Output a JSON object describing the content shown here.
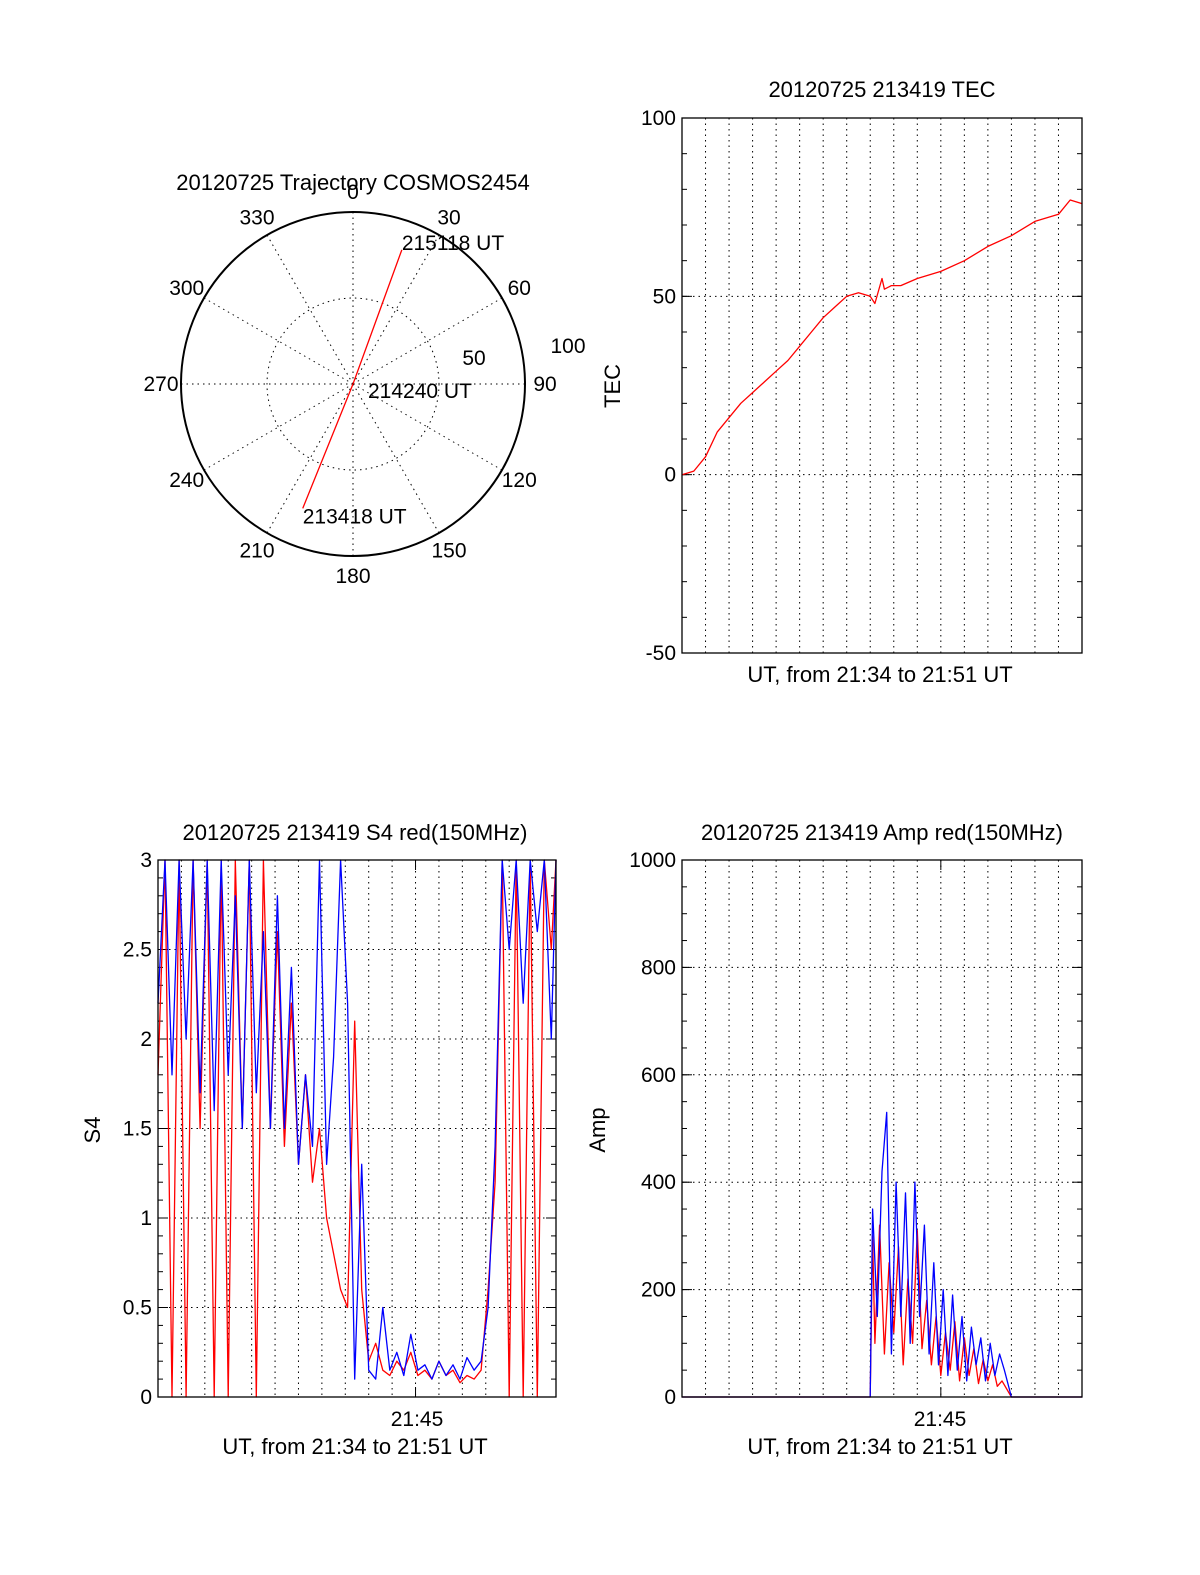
{
  "colors": {
    "red_series": "#ff0000",
    "blue_series": "#0000ff",
    "axes": "#000000",
    "background": "#ffffff"
  },
  "chart_data": [
    {
      "type": "polar",
      "title": "20120725 Trajectory COSMOS2454",
      "azimuth_ticks": [
        "0",
        "30",
        "60",
        "90",
        "120",
        "150",
        "180",
        "210",
        "240",
        "270",
        "300",
        "330"
      ],
      "radial_ticks": [
        "50",
        "100"
      ],
      "rlim": [
        0,
        100
      ],
      "trajectory": [
        {
          "azimuth": 202,
          "zenith_angle": 78,
          "label": "213418 UT"
        },
        {
          "azimuth": 20,
          "zenith_angle": 0,
          "label": "214240 UT"
        },
        {
          "azimuth": 20,
          "zenith_angle": 83,
          "label": "215118 UT"
        }
      ],
      "grid": true
    },
    {
      "type": "line",
      "title": "20120725 213419 TEC",
      "xlabel": "UT, from 21:34 to 21:51 UT",
      "ylabel": "TEC",
      "xlim": [
        "21:34",
        "21:51"
      ],
      "ylim": [
        -50,
        100
      ],
      "y_ticks": [
        "-50",
        "0",
        "50",
        "100"
      ],
      "grid": true,
      "series": [
        {
          "color": "red",
          "x": [
            0,
            0.5,
            1,
            1.5,
            2,
            2.5,
            3,
            3.5,
            4,
            4.5,
            5,
            5.5,
            6,
            6.5,
            7,
            7.5,
            8,
            8.2,
            8.5,
            8.6,
            8.9,
            9.3,
            10,
            11,
            12,
            13,
            14,
            15,
            16,
            16.5,
            17
          ],
          "y": [
            0,
            1,
            5,
            12,
            16,
            20,
            23,
            26,
            29,
            32,
            36,
            40,
            44,
            47,
            50,
            51,
            50,
            48,
            55,
            52,
            53,
            53,
            55,
            57,
            60,
            64,
            67,
            71,
            73,
            77,
            76
          ]
        }
      ]
    },
    {
      "type": "line",
      "title": "20120725 213419 S4 red(150MHz)",
      "xlabel": "UT, from 21:34 to 21:51 UT",
      "ylabel": "S4",
      "xlim": [
        "21:34",
        "21:51"
      ],
      "ylim": [
        0,
        3
      ],
      "y_ticks": [
        "0",
        "0.5",
        "1",
        "1.5",
        "2",
        "2.5",
        "3"
      ],
      "x_ticks": [
        "21:45"
      ],
      "grid": true,
      "series": [
        {
          "color": "red",
          "x": [
            0,
            0.3,
            0.6,
            0.9,
            1.2,
            1.5,
            1.8,
            2.1,
            2.4,
            2.7,
            3.0,
            3.3,
            3.6,
            3.9,
            4.2,
            4.5,
            4.8,
            5.1,
            5.4,
            5.7,
            6.0,
            6.3,
            6.6,
            6.9,
            7.2,
            7.5,
            7.8,
            8.1,
            8.4,
            8.7,
            9.0,
            9.3,
            9.6,
            9.9,
            10.2,
            10.5,
            10.8,
            11.1,
            11.4,
            11.7,
            12.0,
            12.3,
            12.6,
            12.9,
            13.2,
            13.5,
            13.8,
            14.1,
            14.4,
            14.7,
            15.0,
            15.3,
            15.6,
            15.9,
            16.2,
            16.5,
            16.8,
            17.0
          ],
          "y": [
            1.8,
            3.0,
            0.0,
            3.0,
            0.0,
            3.0,
            1.5,
            3.0,
            0.0,
            3.0,
            0.0,
            3.0,
            1.5,
            3.0,
            0.0,
            3.0,
            1.5,
            2.6,
            1.4,
            2.2,
            1.3,
            1.8,
            1.2,
            1.5,
            1.0,
            0.8,
            0.6,
            0.5,
            2.1,
            0.6,
            0.2,
            0.3,
            0.15,
            0.12,
            0.2,
            0.15,
            0.25,
            0.12,
            0.15,
            0.1,
            0.2,
            0.12,
            0.15,
            0.08,
            0.12,
            0.1,
            0.15,
            0.6,
            1.2,
            3.0,
            0.0,
            3.0,
            0.0,
            3.0,
            0.0,
            3.0,
            2.5,
            3.0
          ]
        },
        {
          "color": "blue",
          "x": [
            0,
            0.3,
            0.6,
            0.9,
            1.2,
            1.5,
            1.8,
            2.1,
            2.4,
            2.7,
            3.0,
            3.3,
            3.6,
            3.9,
            4.2,
            4.5,
            4.8,
            5.1,
            5.4,
            5.7,
            6.0,
            6.3,
            6.6,
            6.9,
            7.2,
            7.5,
            7.8,
            8.1,
            8.4,
            8.7,
            9.0,
            9.3,
            9.6,
            9.9,
            10.2,
            10.5,
            10.8,
            11.1,
            11.4,
            11.7,
            12.0,
            12.3,
            12.6,
            12.9,
            13.2,
            13.5,
            13.8,
            14.1,
            14.4,
            14.7,
            15.0,
            15.3,
            15.6,
            15.9,
            16.2,
            16.5,
            16.8,
            17.0
          ],
          "y": [
            2.2,
            3.0,
            1.8,
            3.0,
            2.0,
            3.0,
            1.7,
            3.0,
            1.6,
            3.0,
            1.8,
            2.8,
            1.5,
            3.0,
            1.7,
            2.6,
            1.5,
            2.8,
            1.5,
            2.4,
            1.3,
            1.8,
            1.4,
            3.0,
            1.3,
            1.9,
            3.0,
            2.2,
            0.1,
            1.3,
            0.15,
            0.1,
            0.5,
            0.15,
            0.25,
            0.12,
            0.35,
            0.15,
            0.18,
            0.1,
            0.2,
            0.12,
            0.18,
            0.1,
            0.22,
            0.15,
            0.2,
            0.5,
            1.4,
            3.0,
            2.5,
            3.0,
            2.2,
            3.0,
            2.6,
            3.0,
            2.0,
            3.0
          ]
        }
      ]
    },
    {
      "type": "line",
      "title": "20120725 213419 Amp red(150MHz)",
      "xlabel": "UT, from 21:34 to 21:51 UT",
      "ylabel": "Amp",
      "xlim": [
        "21:34",
        "21:51"
      ],
      "ylim": [
        0,
        1000
      ],
      "y_ticks": [
        "0",
        "200",
        "400",
        "600",
        "800",
        "1000"
      ],
      "x_ticks": [
        "21:45"
      ],
      "grid": true,
      "series": [
        {
          "color": "red",
          "x": [
            0,
            8.0,
            8.1,
            8.2,
            8.4,
            8.6,
            8.8,
            9.0,
            9.2,
            9.4,
            9.6,
            9.8,
            10.0,
            10.2,
            10.4,
            10.6,
            10.8,
            11.0,
            11.2,
            11.4,
            11.6,
            11.8,
            12.0,
            12.2,
            12.4,
            12.6,
            12.8,
            13.0,
            13.2,
            13.4,
            13.6,
            14.0,
            14.5,
            17.0
          ],
          "y": [
            0,
            0,
            300,
            100,
            320,
            80,
            250,
            120,
            280,
            60,
            220,
            100,
            310,
            90,
            180,
            60,
            150,
            40,
            120,
            50,
            140,
            30,
            110,
            40,
            90,
            25,
            70,
            30,
            60,
            20,
            30,
            0,
            0,
            0
          ]
        },
        {
          "color": "blue",
          "x": [
            0,
            8.0,
            8.1,
            8.3,
            8.5,
            8.7,
            8.9,
            9.1,
            9.3,
            9.5,
            9.7,
            9.9,
            10.1,
            10.3,
            10.5,
            10.7,
            10.9,
            11.1,
            11.3,
            11.5,
            11.7,
            11.9,
            12.1,
            12.3,
            12.5,
            12.7,
            12.9,
            13.1,
            13.3,
            13.5,
            13.7,
            14.0,
            14.5,
            17.0
          ],
          "y": [
            0,
            0,
            350,
            150,
            420,
            530,
            80,
            400,
            150,
            380,
            100,
            400,
            150,
            320,
            80,
            250,
            60,
            200,
            40,
            190,
            50,
            150,
            30,
            130,
            60,
            110,
            30,
            100,
            40,
            80,
            50,
            0,
            0,
            0
          ]
        }
      ]
    }
  ]
}
